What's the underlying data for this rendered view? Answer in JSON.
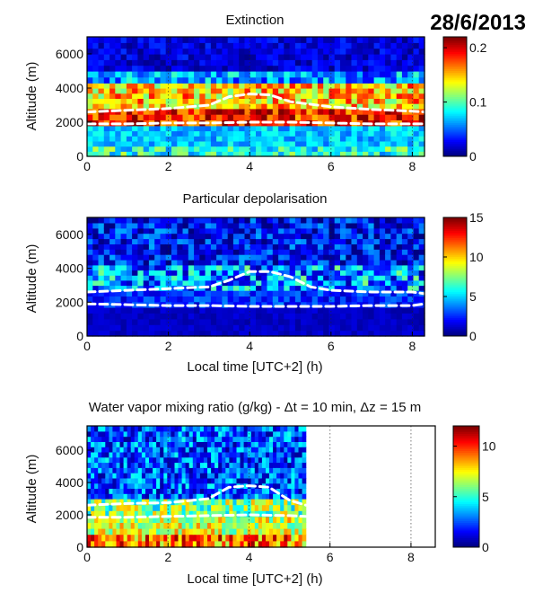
{
  "date_label": "28/6/2013",
  "chart_data": [
    {
      "type": "heatmap",
      "title": "Extinction",
      "xlabel": "",
      "ylabel": "Altitude (m)",
      "xlim": [
        0,
        8.3
      ],
      "ylim": [
        0,
        7000
      ],
      "xticks": [
        0,
        2,
        4,
        6,
        8
      ],
      "yticks": [
        0,
        2000,
        4000,
        6000
      ],
      "colorbar": {
        "range": [
          0,
          0.22
        ],
        "ticks": [
          "0",
          "0.1",
          "0.2"
        ],
        "tick_values": [
          0,
          0.1,
          0.2
        ]
      },
      "colormap": "jet",
      "grid": true,
      "layers": [
        {
          "y0": 0,
          "y1": 600,
          "value": 0.09,
          "contrast": 0.4
        },
        {
          "y0": 600,
          "y1": 1800,
          "value": 0.07,
          "contrast": 0.3
        },
        {
          "y0": 1800,
          "y1": 2800,
          "value": 0.19,
          "contrast": 0.2
        },
        {
          "y0": 2800,
          "y1": 4300,
          "value": 0.15,
          "contrast": 0.3
        },
        {
          "y0": 4300,
          "y1": 5000,
          "value": 0.06,
          "contrast": 0.6
        },
        {
          "y0": 5000,
          "y1": 7000,
          "value": 0.02,
          "contrast": 0.9
        }
      ],
      "boundary_lines": [
        {
          "x": [
            0,
            1,
            2,
            3,
            3.5,
            4,
            4.5,
            5,
            6,
            7,
            8,
            8.3
          ],
          "y": [
            2600,
            2700,
            2800,
            3000,
            3500,
            3650,
            3600,
            3200,
            2900,
            2750,
            2650,
            2600
          ]
        },
        {
          "x": [
            0,
            1,
            2,
            3,
            4,
            5,
            6,
            7,
            8,
            8.3
          ],
          "y": [
            1900,
            1900,
            1950,
            1950,
            2000,
            2000,
            1950,
            1900,
            1900,
            1900
          ]
        }
      ]
    },
    {
      "type": "heatmap",
      "title": "Particular depolarisation",
      "xlabel": "Local time [UTC+2] (h)",
      "ylabel": "Altitude (m)",
      "xlim": [
        0,
        8.3
      ],
      "ylim": [
        0,
        7000
      ],
      "xticks": [
        0,
        2,
        4,
        6,
        8
      ],
      "yticks": [
        0,
        2000,
        4000,
        6000
      ],
      "colorbar": {
        "range": [
          0,
          15
        ],
        "ticks": [
          "0",
          "5",
          "10",
          "15"
        ],
        "tick_values": [
          0,
          5,
          10,
          15
        ]
      },
      "colormap": "jet",
      "grid": true,
      "layers": [
        {
          "y0": 0,
          "y1": 1700,
          "value": 1,
          "contrast": 0.5
        },
        {
          "y0": 1700,
          "y1": 2700,
          "value": 2.5,
          "contrast": 0.6
        },
        {
          "y0": 2700,
          "y1": 4200,
          "value": 4,
          "contrast": 0.9
        },
        {
          "y0": 4200,
          "y1": 7000,
          "value": 2,
          "contrast": 1.2
        }
      ],
      "boundary_lines": [
        {
          "x": [
            0,
            1,
            2,
            3,
            3.5,
            4,
            4.5,
            5,
            5.5,
            6,
            7,
            8,
            8.3
          ],
          "y": [
            2600,
            2700,
            2800,
            2900,
            3300,
            3800,
            3800,
            3500,
            2900,
            2700,
            2600,
            2600,
            2500
          ]
        },
        {
          "x": [
            0,
            1,
            2,
            3,
            4,
            5,
            6,
            7,
            8,
            8.3
          ],
          "y": [
            1900,
            1850,
            1800,
            1800,
            1750,
            1750,
            1750,
            1800,
            1800,
            1900
          ]
        }
      ]
    },
    {
      "type": "heatmap",
      "title": "Water vapor mixing ratio (g/kg) - Δt = 10 min, Δz = 15 m",
      "xlabel": "Local time [UTC+2] (h)",
      "ylabel": "Altitude (m)",
      "xlim": [
        0,
        8.6
      ],
      "ylim": [
        0,
        7500
      ],
      "xticks": [
        0,
        2,
        4,
        6,
        8
      ],
      "yticks": [
        0,
        2000,
        4000,
        6000
      ],
      "colorbar": {
        "range": [
          0,
          12
        ],
        "ticks": [
          "0",
          "5",
          "10"
        ],
        "tick_values": [
          0,
          5,
          10
        ]
      },
      "colormap": "jet",
      "grid": true,
      "layers": [
        {
          "y0": 0,
          "y1": 800,
          "value": 9,
          "contrast": 0.3
        },
        {
          "y0": 800,
          "y1": 1900,
          "value": 7,
          "contrast": 0.3
        },
        {
          "y0": 1900,
          "y1": 3000,
          "value": 6,
          "contrast": 0.4
        },
        {
          "y0": 3000,
          "y1": 7500,
          "value": 2.5,
          "contrast": 0.9
        }
      ],
      "data_extent_hours": [
        0,
        5.4
      ],
      "boundary_lines": [
        {
          "x": [
            0,
            1,
            2,
            3,
            3.5,
            4,
            4.5,
            5,
            5.4
          ],
          "y": [
            2600,
            2700,
            2750,
            3000,
            3700,
            3800,
            3700,
            2900,
            2600
          ]
        },
        {
          "x": [
            0,
            1,
            2,
            3,
            4,
            5,
            5.4
          ],
          "y": [
            1850,
            1850,
            1900,
            1950,
            2000,
            1950,
            1900
          ]
        }
      ]
    }
  ]
}
